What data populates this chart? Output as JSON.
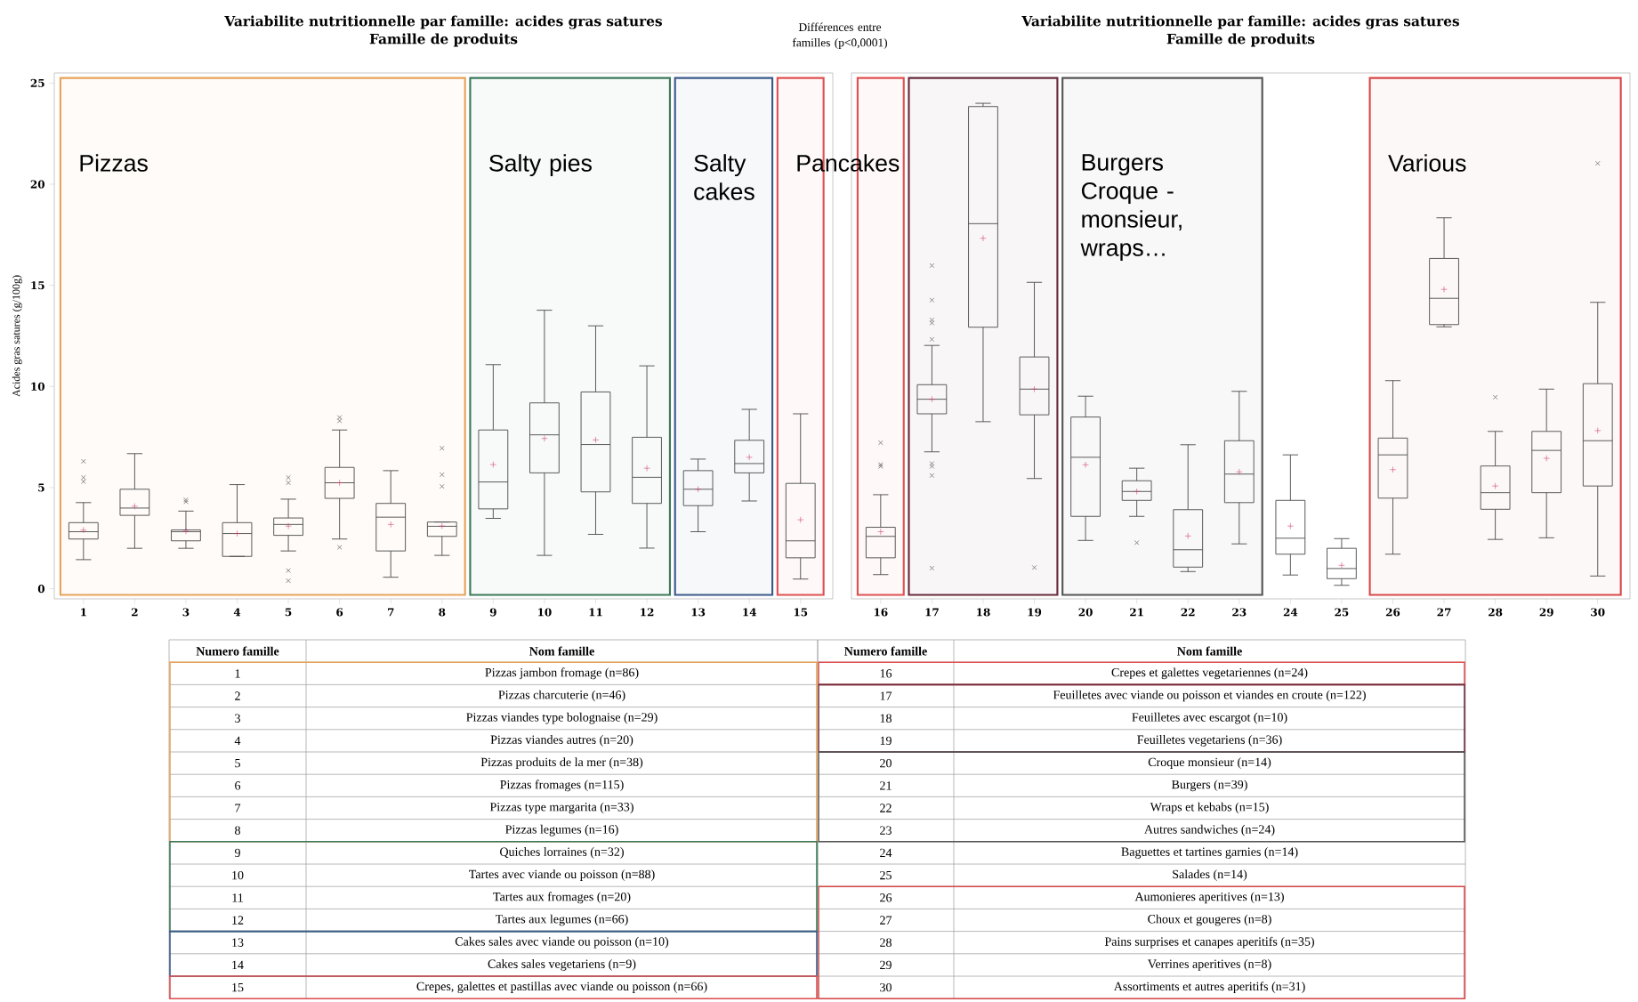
{
  "chart_data": [
    {
      "type": "box",
      "title": "Variabilite nutritionnelle par famille: acides gras satures",
      "subtitle": "Famille de produits",
      "ylabel": "Acides gras satures (g/100g)",
      "categories": [
        "1",
        "2",
        "3",
        "4",
        "5",
        "6",
        "7",
        "8",
        "9",
        "10",
        "11",
        "12",
        "13",
        "14",
        "15"
      ],
      "ylim": [
        -0.5,
        25.5
      ],
      "yticks": [
        0,
        5,
        10,
        15,
        20,
        25
      ],
      "boxes": [
        {
          "low": 1.44,
          "q1": 2.46,
          "median": 2.82,
          "q3": 3.27,
          "high": 4.26,
          "mean": 2.9,
          "outliers": [
            5.3,
            5.5,
            6.3
          ]
        },
        {
          "low": 2.0,
          "q1": 3.63,
          "median": 3.99,
          "q3": 4.92,
          "high": 6.68,
          "mean": 4.08
        },
        {
          "low": 2.0,
          "q1": 2.37,
          "median": 2.82,
          "q3": 2.91,
          "high": 3.84,
          "mean": 2.85,
          "outliers": [
            4.3,
            4.4
          ]
        },
        {
          "low": 1.6,
          "q1": 1.6,
          "median": 2.73,
          "q3": 3.27,
          "high": 5.15,
          "mean": 2.73
        },
        {
          "low": 1.87,
          "q1": 2.64,
          "median": 3.18,
          "q3": 3.5,
          "high": 4.43,
          "mean": 3.1,
          "outliers": [
            0.4,
            0.9,
            5.24,
            5.5
          ]
        },
        {
          "low": 2.46,
          "q1": 4.47,
          "median": 5.24,
          "q3": 6.0,
          "high": 7.85,
          "mean": 5.24,
          "outliers": [
            2.05,
            8.3,
            8.47
          ]
        },
        {
          "low": 0.57,
          "q1": 1.87,
          "median": 3.54,
          "q3": 4.22,
          "high": 5.84,
          "mean": 3.18
        },
        {
          "low": 1.65,
          "q1": 2.59,
          "median": 3.09,
          "q3": 3.3,
          "high": 3.3,
          "mean": 3.1,
          "outliers": [
            5.06,
            5.64,
            6.95
          ]
        },
        {
          "low": 3.48,
          "q1": 3.95,
          "median": 5.28,
          "q3": 7.85,
          "high": 11.08,
          "mean": 6.14
        },
        {
          "low": 1.65,
          "q1": 5.73,
          "median": 7.61,
          "q3": 9.19,
          "high": 13.77,
          "mean": 7.43
        },
        {
          "low": 2.69,
          "q1": 4.79,
          "median": 7.13,
          "q3": 9.73,
          "high": 13.0,
          "mean": 7.36
        },
        {
          "low": 2.01,
          "q1": 4.22,
          "median": 5.51,
          "q3": 7.49,
          "high": 11.02,
          "mean": 5.96
        },
        {
          "low": 2.82,
          "q1": 4.11,
          "median": 4.92,
          "q3": 5.84,
          "high": 6.41,
          "mean": 4.92
        },
        {
          "low": 4.34,
          "q1": 5.73,
          "median": 6.19,
          "q3": 7.34,
          "high": 8.87,
          "mean": 6.5
        },
        {
          "low": 0.48,
          "q1": 1.53,
          "median": 2.37,
          "q3": 5.21,
          "high": 8.65,
          "mean": 3.41
        }
      ],
      "bands": [
        {
          "axis": "x",
          "from": "1",
          "to": "8",
          "label": "Pizzas",
          "color": "#e8a35a"
        },
        {
          "axis": "x",
          "from": "9",
          "to": "12",
          "label": "Salty pies",
          "color": "#3a7a5a"
        },
        {
          "axis": "x",
          "from": "13",
          "to": "14",
          "label": "Salty cakes",
          "color": "#3a5a8a"
        },
        {
          "axis": "x",
          "from": "15",
          "to": "15",
          "label": "Pancakes",
          "color": "#e05050"
        }
      ],
      "annotations": [
        "Différences entre familles (p<0,0001)",
        "Numero famille",
        "Nom famille",
        "Pizzas jambon fromage (n=86)",
        "Pizzas charcuterie (n=46)",
        "Pizzas viandes type bolognaise (n=29)",
        "Pizzas viandes autres (n=20)",
        "Pizzas produits de la mer (n=38)",
        "Pizzas fromages (n=115)",
        "Pizzas type margarita (n=33)",
        "Pizzas legumes (n=16)",
        "Quiches lorraines (n=32)",
        "Tartes avec viande ou poisson (n=88)",
        "Tartes aux fromages (n=20)",
        "Tartes aux legumes (n=66)",
        "Cakes sales avec viande ou poisson (n=10)",
        "Cakes sales vegetariens (n=9)",
        "Crepes, galettes et pastillas avec viande ou poisson (n=66)"
      ]
    },
    {
      "type": "box",
      "title": "Variabilite nutritionnelle par famille: acides gras satures",
      "subtitle": "Famille de produits",
      "categories": [
        "16",
        "17",
        "18",
        "19",
        "20",
        "21",
        "22",
        "23",
        "24",
        "25",
        "26",
        "27",
        "28",
        "29",
        "30"
      ],
      "ylim": [
        -0.5,
        25.5
      ],
      "tick_labels": "x",
      "boxes": [
        {
          "low": 0.7,
          "q1": 1.53,
          "median": 2.59,
          "q3": 3.04,
          "high": 4.65,
          "mean": 2.82,
          "outliers": [
            6.05,
            6.14,
            7.22
          ]
        },
        {
          "low": 6.77,
          "q1": 8.65,
          "median": 9.37,
          "q3": 10.09,
          "high": 12.03,
          "mean": 9.37,
          "outliers": [
            1.02,
            5.6,
            6.05,
            6.19,
            12.33,
            13.14,
            13.29,
            14.27,
            15.98
          ]
        },
        {
          "low": 8.26,
          "q1": 12.93,
          "median": 18.05,
          "q3": 23.84,
          "high": 24.0,
          "mean": 17.33
        },
        {
          "low": 5.45,
          "q1": 8.6,
          "median": 9.87,
          "q3": 11.46,
          "high": 15.15,
          "mean": 9.87,
          "outliers": [
            1.05
          ]
        },
        {
          "low": 2.39,
          "q1": 3.58,
          "median": 6.5,
          "q3": 8.49,
          "high": 9.52,
          "mean": 6.13
        },
        {
          "low": 3.58,
          "q1": 4.37,
          "median": 4.81,
          "q3": 5.34,
          "high": 5.96,
          "mean": 4.81,
          "outliers": [
            2.28
          ]
        },
        {
          "low": 0.85,
          "q1": 1.07,
          "median": 1.93,
          "q3": 3.91,
          "high": 7.12,
          "mean": 2.61
        },
        {
          "low": 2.22,
          "q1": 4.26,
          "median": 5.67,
          "q3": 7.32,
          "high": 9.76,
          "mean": 5.78
        },
        {
          "low": 0.68,
          "q1": 1.71,
          "median": 2.5,
          "q3": 4.37,
          "high": 6.62,
          "mean": 3.1
        },
        {
          "low": 0.17,
          "q1": 0.5,
          "median": 1.0,
          "q3": 2.0,
          "high": 2.48,
          "mean": 1.16
        },
        {
          "low": 1.71,
          "q1": 4.48,
          "median": 6.62,
          "q3": 7.45,
          "high": 10.29,
          "mean": 5.89
        },
        {
          "low": 12.95,
          "q1": 13.06,
          "median": 14.36,
          "q3": 16.33,
          "high": 18.34,
          "mean": 14.8
        },
        {
          "low": 2.44,
          "q1": 3.93,
          "median": 4.75,
          "q3": 6.07,
          "high": 7.78,
          "mean": 5.08,
          "outliers": [
            9.47
          ]
        },
        {
          "low": 2.52,
          "q1": 4.75,
          "median": 6.84,
          "q3": 7.78,
          "high": 9.87,
          "mean": 6.45
        },
        {
          "low": 0.63,
          "q1": 5.08,
          "median": 7.32,
          "q3": 10.14,
          "high": 14.16,
          "mean": 7.82,
          "outliers": [
            21.03
          ]
        }
      ],
      "bands": [
        {
          "axis": "x",
          "from": "16",
          "to": "16",
          "color": "#e05050"
        },
        {
          "axis": "x",
          "from": "17",
          "to": "19",
          "color": "#6a2a3a"
        },
        {
          "axis": "x",
          "from": "20",
          "to": "23",
          "label": "Burgers Croque - monsieur, wraps…",
          "color": "#555555"
        },
        {
          "axis": "x",
          "from": "26",
          "to": "30",
          "label": "Various",
          "color": "#d84848"
        }
      ],
      "annotations": [
        "Numero famille",
        "Nom famille",
        "Crepes et galettes vegetariennes (n=24)",
        "Feuilletes avec viande ou poisson et viandes en croute (n=122)",
        "Feuilletes avec escargot (n=10)",
        "Feuilletes vegetariens (n=36)",
        "Croque monsieur (n=14)",
        "Burgers (n=39)",
        "Wraps et kebabs (n=15)",
        "Autres sandwiches (n=24)",
        "Baguettes et tartines garnies (n=14)",
        "Salades (n=14)",
        "Aumonieres aperitives (n=13)",
        "Choux et gougeres (n=8)",
        "Pains surprises et canapes aperitifs (n=35)",
        "Verrines aperitives (n=8)",
        "Assortiments et autres aperitifs (n=31)"
      ]
    }
  ]
}
